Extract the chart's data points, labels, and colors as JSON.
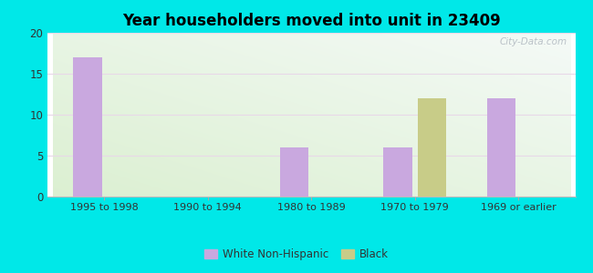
{
  "title": "Year householders moved into unit in 23409",
  "categories": [
    "1995 to 1998",
    "1990 to 1994",
    "1980 to 1989",
    "1970 to 1979",
    "1969 or earlier"
  ],
  "white_values": [
    17,
    0,
    6,
    6,
    12
  ],
  "black_values": [
    0,
    0,
    0,
    12,
    0
  ],
  "white_color": "#c9a8df",
  "black_color": "#c8cc88",
  "ylim": [
    0,
    20
  ],
  "yticks": [
    0,
    5,
    10,
    15,
    20
  ],
  "outer_bg": "#00e8e8",
  "bar_width": 0.28,
  "bar_gap": 0.05,
  "legend_white": "White Non-Hispanic",
  "legend_black": "Black",
  "watermark": "City-Data.com"
}
